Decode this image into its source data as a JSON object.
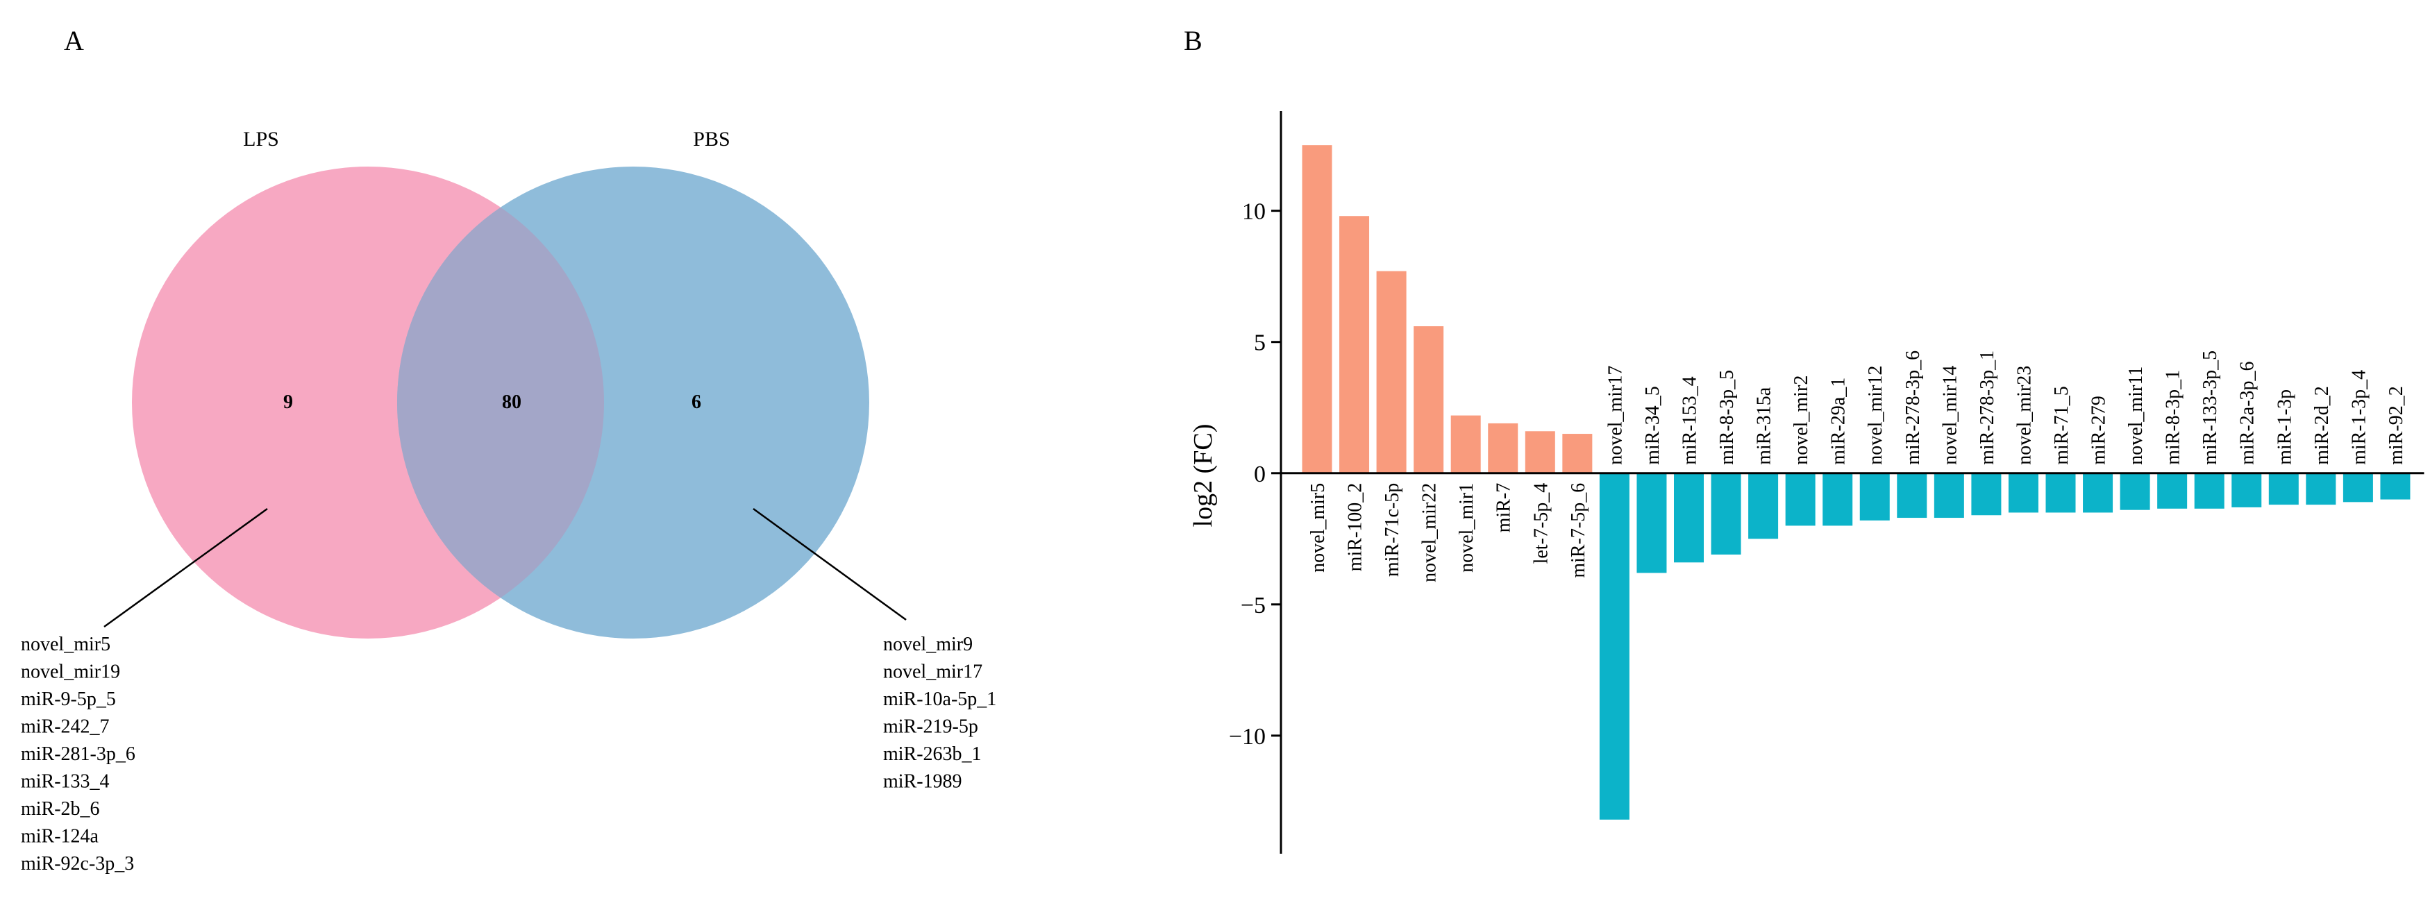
{
  "panel_a_label": "A",
  "panel_b_label": "B",
  "chart_data": [
    {
      "type": "venn",
      "sets": [
        {
          "name": "LPS",
          "color": "#f7a8c2"
        },
        {
          "name": "PBS",
          "color": "#8fbcda"
        }
      ],
      "overlap_color": "#a3a6c8",
      "counts": {
        "lps_only": "9",
        "both": "80",
        "pbs_only": "6"
      },
      "lps_only_list": [
        "novel_mir5",
        "novel_mir19",
        "miR-9-5p_5",
        "miR-242_7",
        "miR-281-3p_6",
        "miR-133_4",
        "miR-2b_6",
        "miR-124a",
        "miR-92c-3p_3"
      ],
      "pbs_only_list": [
        "novel_mir9",
        "novel_mir17",
        "miR-10a-5p_1",
        "miR-219-5p",
        "miR-263b_1",
        "miR-1989"
      ]
    },
    {
      "type": "bar",
      "ylabel": "log2 (FC)",
      "ylim": [
        -14.5,
        13.8
      ],
      "yticks": [
        -10,
        -5,
        0,
        5,
        10
      ],
      "up_color": "#f99b7d",
      "down_color": "#0cb3c9",
      "categories": [
        "novel_mir5",
        "miR-100_2",
        "miR-71c-5p",
        "novel_mir22",
        "novel_mir1",
        "miR-7",
        "let-7-5p_4",
        "miR-7-5p_6",
        "novel_mir17",
        "miR-34_5",
        "miR-153_4",
        "miR-8-3p_5",
        "miR-315a",
        "novel_mir2",
        "miR-29a_1",
        "novel_mir12",
        "miR-278-3p_6",
        "novel_mir14",
        "miR-278-3p_1",
        "novel_mir23",
        "miR-71_5",
        "miR-279",
        "novel_mir11",
        "miR-8-3p_1",
        "miR-133-3p_5",
        "miR-2a-3p_6",
        "miR-1-3p",
        "miR-2d_2",
        "miR-1-3p_4",
        "miR-92_2"
      ],
      "values": [
        12.5,
        9.8,
        7.7,
        5.6,
        2.2,
        1.9,
        1.6,
        1.5,
        -13.2,
        -3.8,
        -3.4,
        -3.1,
        -2.5,
        -2.0,
        -2.0,
        -1.8,
        -1.7,
        -1.7,
        -1.6,
        -1.5,
        -1.5,
        -1.5,
        -1.4,
        -1.35,
        -1.35,
        -1.3,
        -1.2,
        -1.2,
        -1.1,
        -1.0
      ]
    }
  ]
}
